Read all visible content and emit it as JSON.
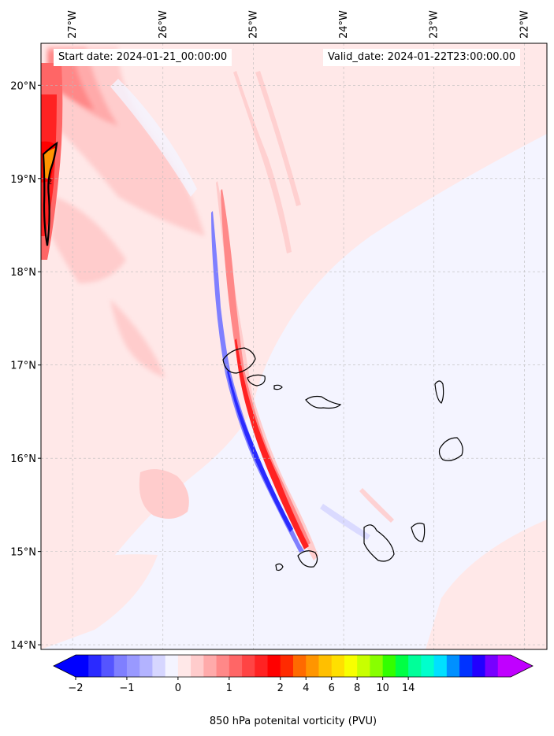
{
  "chart_data": {
    "type": "heatmap",
    "title": "",
    "variable_label": "850 hPa potenital vorticity (PVU)",
    "annotations": {
      "start": "Start date: 2024-01-21_00:00:00",
      "valid": "Valid_date: 2024-01-22T23:00:00.00"
    },
    "x_axis": {
      "position": "top",
      "range": [
        -27.35,
        -21.75
      ],
      "ticks": [
        -27,
        -26,
        -25,
        -24,
        -23,
        -22
      ],
      "tick_labels": [
        "27°W",
        "26°W",
        "25°W",
        "24°W",
        "23°W",
        "22°W"
      ]
    },
    "y_axis": {
      "position": "left",
      "range": [
        13.95,
        20.45
      ],
      "ticks": [
        14,
        15,
        16,
        17,
        18,
        19,
        20
      ],
      "tick_labels": [
        "14°N",
        "15°N",
        "16°N",
        "17°N",
        "18°N",
        "19°N",
        "20°N"
      ]
    },
    "colorbar": {
      "extend": "both",
      "ticks": [
        -2,
        -1,
        0,
        1,
        2,
        4,
        6,
        8,
        10,
        14
      ],
      "tick_labels": [
        "−2",
        "−1",
        "0",
        "1",
        "2",
        "4",
        "6",
        "8",
        "10",
        "14"
      ],
      "colors": [
        "#0000ff",
        "#2a2aff",
        "#5555ff",
        "#7f7fff",
        "#9999ff",
        "#b3b3ff",
        "#d6d6ff",
        "#f4f4ff",
        "#ffe8e8",
        "#ffcccc",
        "#ffaaaa",
        "#ff8888",
        "#ff6666",
        "#ff4444",
        "#ff2222",
        "#ff0000",
        "#ff2a00",
        "#ff6a00",
        "#ff9500",
        "#ffbf00",
        "#ffdf00",
        "#f8ff00",
        "#c8ff00",
        "#88ff00",
        "#33ff00",
        "#00ff44",
        "#00ff99",
        "#00ffcc",
        "#00e0ff",
        "#0090ff",
        "#0033ff",
        "#2200ff",
        "#7700ff",
        "#c000ff"
      ],
      "under_color": "#0000ff",
      "over_color": "#c000ff"
    },
    "contour_levels": [
      2
    ],
    "contour_label": "2",
    "background_value": -0.1,
    "features": [
      {
        "name": "broad-low-positive-pv",
        "value": 0.3
      },
      {
        "name": "north-west-pv-streaks",
        "value": 1.5
      },
      {
        "name": "west-edge-pv-maximum",
        "value": 3.0
      },
      {
        "name": "island-wake-positive-streak",
        "value": 2.0
      },
      {
        "name": "island-wake-negative-streak",
        "value": -1.5
      }
    ]
  }
}
